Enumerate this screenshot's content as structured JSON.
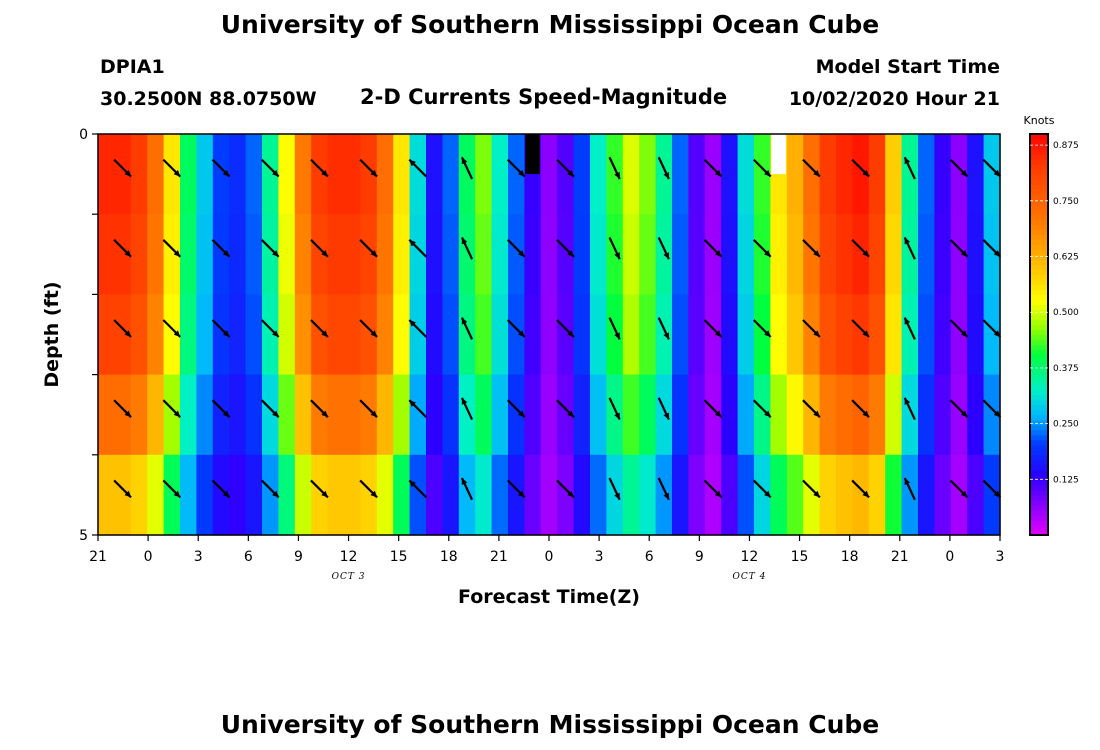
{
  "header": {
    "title_top": "University of Southern Mississippi Ocean Cube",
    "title_bottom": "University of Southern Mississippi Ocean Cube",
    "station": "DPIA1",
    "coords": "30.2500N 88.0750W",
    "subtitle": "2-D Currents Speed-Magnitude",
    "model_label": "Model Start Time",
    "model_time": "10/02/2020 Hour 21"
  },
  "chart_data": {
    "type": "heatmap",
    "title": "2-D Currents Speed-Magnitude",
    "xlabel": "Forecast Time(Z)",
    "ylabel": "Depth (ft)",
    "x_tick_labels": [
      "21",
      "0",
      "3",
      "6",
      "9",
      "12",
      "15",
      "18",
      "21",
      "0",
      "3",
      "6",
      "9",
      "12",
      "15",
      "18",
      "21",
      "0",
      "3"
    ],
    "x_date_labels": [
      {
        "label": "OCT 3",
        "hour_index": 15
      },
      {
        "label": "OCT 4",
        "hour_index": 39
      }
    ],
    "y_tick_labels": [
      "0",
      "5"
    ],
    "y_range": [
      0,
      5
    ],
    "depth_levels": 5,
    "hours": 55,
    "colorbar": {
      "title": "Knots",
      "min": 0.0,
      "max": 0.9,
      "tick_labels": [
        "0.125",
        "0.250",
        "0.375",
        "0.500",
        "0.625",
        "0.750",
        "0.875"
      ],
      "tick_values": [
        0.125,
        0.25,
        0.375,
        0.5,
        0.625,
        0.75,
        0.875
      ]
    },
    "speed_surface_by_hour": [
      0.85,
      0.85,
      0.82,
      0.72,
      0.55,
      0.38,
      0.28,
      0.2,
      0.18,
      0.22,
      0.35,
      0.52,
      0.7,
      0.82,
      0.84,
      0.84,
      0.82,
      0.72,
      0.55,
      0.3,
      0.15,
      0.22,
      0.38,
      0.45,
      0.32,
      0.22,
      0.12,
      0.06,
      0.1,
      0.2,
      0.32,
      0.42,
      0.5,
      0.45,
      0.35,
      0.22,
      0.1,
      0.05,
      0.15,
      0.3,
      0.42,
      0.55,
      0.62,
      0.72,
      0.82,
      0.85,
      0.87,
      0.82,
      0.58,
      0.35,
      0.22,
      0.12,
      0.06,
      0.15,
      0.28
    ],
    "depth_factors": [
      1.0,
      0.98,
      0.95,
      0.85,
      0.7
    ],
    "special_cells": [
      {
        "hour_index": 26,
        "depth": 0,
        "value": "black"
      },
      {
        "hour_index": 41,
        "depth": 0,
        "value": "white"
      }
    ],
    "arrows": [
      {
        "hour_index": 1,
        "direction": "SE"
      },
      {
        "hour_index": 4,
        "direction": "SE"
      },
      {
        "hour_index": 7,
        "direction": "SE"
      },
      {
        "hour_index": 10,
        "direction": "SE"
      },
      {
        "hour_index": 13,
        "direction": "SE"
      },
      {
        "hour_index": 16,
        "direction": "SE"
      },
      {
        "hour_index": 19,
        "direction": "NW"
      },
      {
        "hour_index": 22,
        "direction": "NNW"
      },
      {
        "hour_index": 25,
        "direction": "SE"
      },
      {
        "hour_index": 28,
        "direction": "SE"
      },
      {
        "hour_index": 31,
        "direction": "SSE"
      },
      {
        "hour_index": 34,
        "direction": "SSE"
      },
      {
        "hour_index": 37,
        "direction": "SE"
      },
      {
        "hour_index": 40,
        "direction": "SE"
      },
      {
        "hour_index": 43,
        "direction": "SE"
      },
      {
        "hour_index": 46,
        "direction": "SE"
      },
      {
        "hour_index": 49,
        "direction": "NNW"
      },
      {
        "hour_index": 52,
        "direction": "SE"
      },
      {
        "hour_index": 55,
        "direction": "SE"
      }
    ]
  }
}
